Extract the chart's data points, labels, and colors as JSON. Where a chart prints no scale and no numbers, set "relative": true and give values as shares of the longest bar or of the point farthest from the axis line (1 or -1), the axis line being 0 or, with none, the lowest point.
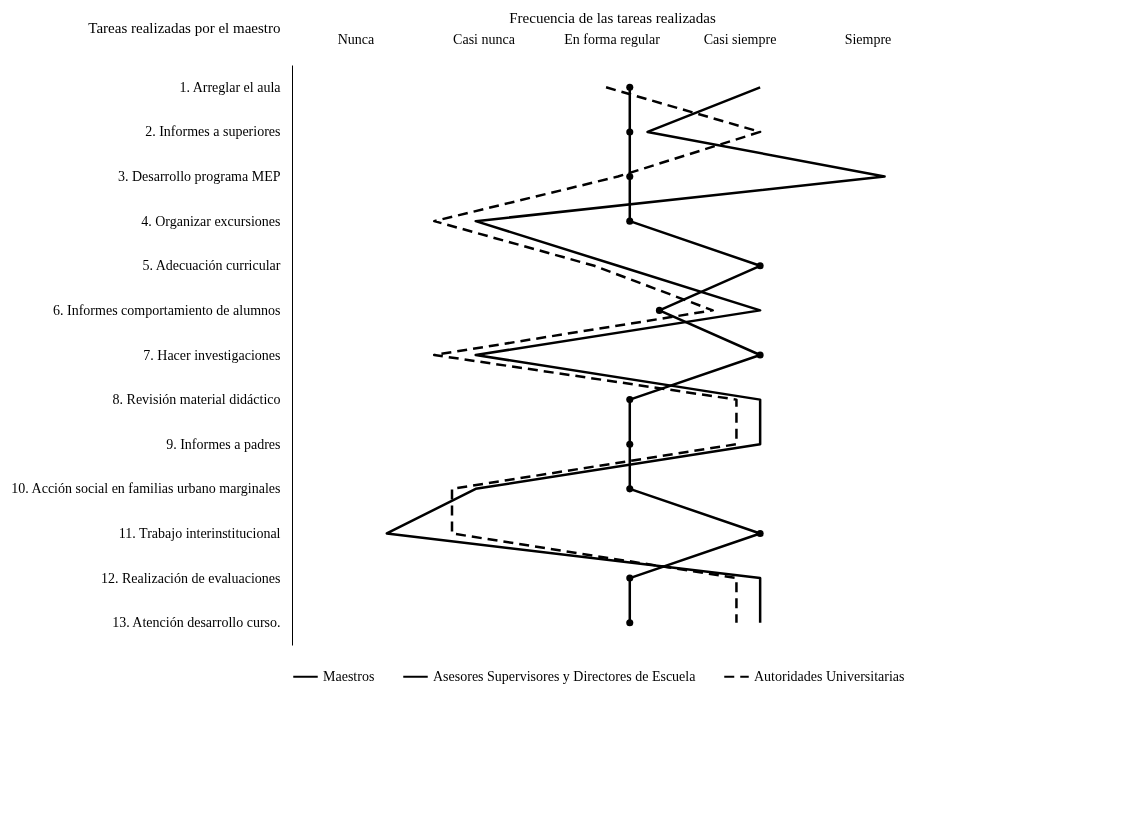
{
  "chart_data": {
    "type": "line",
    "orientation": "horizontal",
    "relative": true,
    "xlabel": "Frecuencia de las tareas realizadas",
    "ylabel": "Tareas realizadas por el maestro",
    "categories": [
      "1. Arreglar el aula",
      "2. Informes a superiores",
      "3. Desarrollo programa MEP",
      "4. Organizar excursiones",
      "5. Adecuación curricular",
      "6. Informes comportamiento de alumnos",
      "7. Hacer investigaciones",
      "8. Revisión material didáctico",
      "9. Informes a padres",
      "10. Acción social en familias urbano marginales",
      "11. Trabajo interinstitucional",
      "12. Realización de evaluaciones",
      "13. Atención desarrollo curso."
    ],
    "annotations": [
      "Nunca",
      "Casi nunca",
      "En forma regular",
      "Casi siempre",
      "Siempre"
    ],
    "series": [
      {
        "name": "Maestros",
        "color": "#000000",
        "line_style": "solid",
        "marker": "none",
        "values": [
          0.79,
          0.6,
          1,
          0.31,
          0.55,
          0.79,
          0.31,
          0.79,
          0.79,
          0.31,
          0.16,
          0.79,
          0.79
        ]
      },
      {
        "name": "Asesores Supervisores y Directores de Escuela",
        "color": "#000000",
        "line_style": "solid",
        "marker": "circle",
        "values": [
          0.57,
          0.57,
          0.57,
          0.57,
          0.79,
          0.62,
          0.79,
          0.57,
          0.57,
          0.57,
          0.79,
          0.57,
          0.57
        ]
      },
      {
        "name": "Autoridades Universitarias",
        "color": "#000000",
        "line_style": "dashed",
        "marker": "none",
        "values": [
          0.53,
          0.79,
          0.55,
          0.24,
          0.51,
          0.71,
          0.24,
          0.75,
          0.75,
          0.27,
          0.27,
          0.75,
          0.75
        ]
      }
    ],
    "legend": "bottom"
  }
}
